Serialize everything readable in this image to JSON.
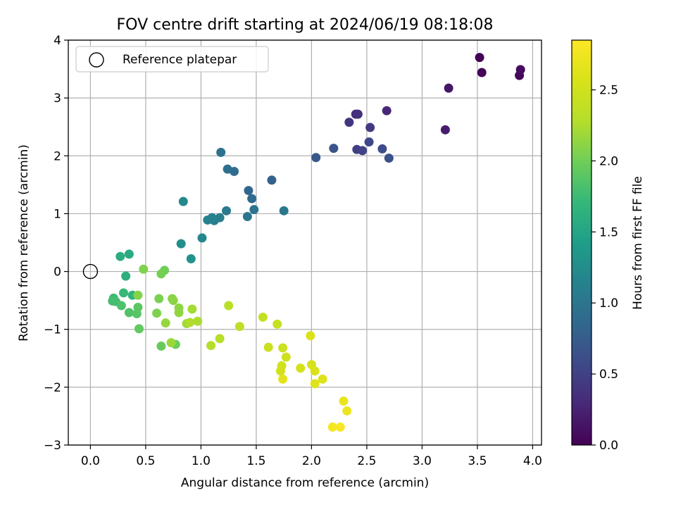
{
  "chart_data": {
    "type": "scatter",
    "title": "FOV centre drift starting at 2024/06/19 08:18:08",
    "xlabel": "Angular distance from reference (arcmin)",
    "ylabel": "Rotation from reference (arcmin)",
    "xlim": [
      -0.2,
      4.08
    ],
    "ylim": [
      -3,
      4
    ],
    "xticks": [
      "0.0",
      "0.5",
      "1.0",
      "1.5",
      "2.0",
      "2.5",
      "3.0",
      "3.5",
      "4.0"
    ],
    "xtick_values": [
      0,
      0.5,
      1,
      1.5,
      2,
      2.5,
      3,
      3.5,
      4
    ],
    "yticks": [
      "−3",
      "−2",
      "−1",
      "0",
      "1",
      "2",
      "3",
      "4"
    ],
    "ytick_values": [
      -3,
      -2,
      -1,
      0,
      1,
      2,
      3,
      4
    ],
    "grid": true,
    "legend": {
      "position": "top-left",
      "entries": [
        "Reference platepar"
      ]
    },
    "reference_point": {
      "x": 0,
      "y": 0
    },
    "colorbar": {
      "label": "Hours from first FF file",
      "colormap": "viridis",
      "range": [
        0,
        2.85
      ],
      "ticks": [
        "0.0",
        "0.5",
        "1.0",
        "1.5",
        "2.0",
        "2.5"
      ],
      "tick_values": [
        0,
        0.5,
        1,
        1.5,
        2,
        2.5
      ]
    },
    "points": [
      {
        "x": 3.52,
        "y": 3.7,
        "c": 0.0
      },
      {
        "x": 3.54,
        "y": 3.44,
        "c": 0.03
      },
      {
        "x": 3.88,
        "y": 3.39,
        "c": 0.05
      },
      {
        "x": 3.89,
        "y": 3.49,
        "c": 0.08
      },
      {
        "x": 3.24,
        "y": 3.17,
        "c": 0.15
      },
      {
        "x": 3.21,
        "y": 2.45,
        "c": 0.2
      },
      {
        "x": 2.68,
        "y": 2.78,
        "c": 0.28
      },
      {
        "x": 2.4,
        "y": 2.72,
        "c": 0.33
      },
      {
        "x": 2.42,
        "y": 2.72,
        "c": 0.36
      },
      {
        "x": 2.34,
        "y": 2.58,
        "c": 0.4
      },
      {
        "x": 2.53,
        "y": 2.49,
        "c": 0.45
      },
      {
        "x": 2.41,
        "y": 2.11,
        "c": 0.48
      },
      {
        "x": 2.46,
        "y": 2.09,
        "c": 0.52
      },
      {
        "x": 2.52,
        "y": 2.24,
        "c": 0.56
      },
      {
        "x": 2.64,
        "y": 2.12,
        "c": 0.6
      },
      {
        "x": 2.7,
        "y": 1.96,
        "c": 0.64
      },
      {
        "x": 2.2,
        "y": 2.13,
        "c": 0.67
      },
      {
        "x": 2.04,
        "y": 1.97,
        "c": 0.72
      },
      {
        "x": 1.64,
        "y": 1.58,
        "c": 0.8
      },
      {
        "x": 1.43,
        "y": 1.4,
        "c": 0.85
      },
      {
        "x": 1.46,
        "y": 1.26,
        "c": 0.88
      },
      {
        "x": 1.3,
        "y": 1.73,
        "c": 0.9
      },
      {
        "x": 1.24,
        "y": 1.77,
        "c": 0.93
      },
      {
        "x": 1.18,
        "y": 2.06,
        "c": 0.95
      },
      {
        "x": 1.48,
        "y": 1.07,
        "c": 0.98
      },
      {
        "x": 1.42,
        "y": 0.95,
        "c": 1.0
      },
      {
        "x": 1.75,
        "y": 1.05,
        "c": 1.02
      },
      {
        "x": 1.23,
        "y": 1.05,
        "c": 1.05
      },
      {
        "x": 1.17,
        "y": 0.93,
        "c": 1.08
      },
      {
        "x": 1.12,
        "y": 0.88,
        "c": 1.1
      },
      {
        "x": 1.1,
        "y": 0.93,
        "c": 1.12
      },
      {
        "x": 1.06,
        "y": 0.89,
        "c": 1.15
      },
      {
        "x": 1.01,
        "y": 0.58,
        "c": 1.18
      },
      {
        "x": 0.84,
        "y": 1.21,
        "c": 1.2
      },
      {
        "x": 0.82,
        "y": 0.48,
        "c": 1.25
      },
      {
        "x": 0.91,
        "y": 0.22,
        "c": 1.3
      },
      {
        "x": 0.35,
        "y": 0.3,
        "c": 1.55
      },
      {
        "x": 0.27,
        "y": 0.26,
        "c": 1.6
      },
      {
        "x": 0.32,
        "y": -0.08,
        "c": 1.62
      },
      {
        "x": 0.38,
        "y": -0.41,
        "c": 1.68
      },
      {
        "x": 0.3,
        "y": -0.37,
        "c": 1.72
      },
      {
        "x": 0.21,
        "y": -0.46,
        "c": 1.75
      },
      {
        "x": 0.2,
        "y": -0.51,
        "c": 1.78
      },
      {
        "x": 0.23,
        "y": -0.52,
        "c": 1.8
      },
      {
        "x": 0.28,
        "y": -0.59,
        "c": 1.83
      },
      {
        "x": 0.35,
        "y": -0.71,
        "c": 1.85
      },
      {
        "x": 0.42,
        "y": -0.73,
        "c": 1.88
      },
      {
        "x": 0.43,
        "y": -0.62,
        "c": 1.9
      },
      {
        "x": 0.44,
        "y": -0.99,
        "c": 1.93
      },
      {
        "x": 0.64,
        "y": -1.29,
        "c": 1.96
      },
      {
        "x": 0.77,
        "y": -1.26,
        "c": 1.98
      },
      {
        "x": 0.67,
        "y": 0.02,
        "c": 2.0
      },
      {
        "x": 0.64,
        "y": -0.04,
        "c": 2.02
      },
      {
        "x": 0.62,
        "y": -0.47,
        "c": 2.04
      },
      {
        "x": 0.6,
        "y": -0.72,
        "c": 2.05
      },
      {
        "x": 0.48,
        "y": 0.04,
        "c": 2.06
      },
      {
        "x": 0.43,
        "y": -0.41,
        "c": 2.08
      },
      {
        "x": 0.74,
        "y": -0.47,
        "c": 2.1
      },
      {
        "x": 0.75,
        "y": -0.5,
        "c": 2.11
      },
      {
        "x": 0.8,
        "y": -0.63,
        "c": 2.12
      },
      {
        "x": 0.8,
        "y": -0.71,
        "c": 2.13
      },
      {
        "x": 0.68,
        "y": -0.89,
        "c": 2.15
      },
      {
        "x": 0.73,
        "y": -1.23,
        "c": 2.17
      },
      {
        "x": 0.87,
        "y": -0.9,
        "c": 2.2
      },
      {
        "x": 0.92,
        "y": -0.65,
        "c": 2.22
      },
      {
        "x": 0.97,
        "y": -0.86,
        "c": 2.24
      },
      {
        "x": 0.9,
        "y": -0.88,
        "c": 2.26
      },
      {
        "x": 1.09,
        "y": -1.28,
        "c": 2.28
      },
      {
        "x": 1.17,
        "y": -1.16,
        "c": 2.3
      },
      {
        "x": 1.25,
        "y": -0.59,
        "c": 2.32
      },
      {
        "x": 1.35,
        "y": -0.95,
        "c": 2.35
      },
      {
        "x": 1.56,
        "y": -0.79,
        "c": 2.4
      },
      {
        "x": 1.69,
        "y": -0.91,
        "c": 2.42
      },
      {
        "x": 1.61,
        "y": -1.31,
        "c": 2.45
      },
      {
        "x": 1.74,
        "y": -1.32,
        "c": 2.47
      },
      {
        "x": 1.77,
        "y": -1.48,
        "c": 2.49
      },
      {
        "x": 1.73,
        "y": -1.63,
        "c": 2.5
      },
      {
        "x": 1.72,
        "y": -1.72,
        "c": 2.51
      },
      {
        "x": 1.9,
        "y": -1.67,
        "c": 2.53
      },
      {
        "x": 2.0,
        "y": -1.61,
        "c": 2.55
      },
      {
        "x": 2.03,
        "y": -1.72,
        "c": 2.57
      },
      {
        "x": 1.99,
        "y": -1.11,
        "c": 2.58
      },
      {
        "x": 2.1,
        "y": -1.86,
        "c": 2.6
      },
      {
        "x": 2.03,
        "y": -1.94,
        "c": 2.62
      },
      {
        "x": 1.74,
        "y": -1.86,
        "c": 2.65
      },
      {
        "x": 2.29,
        "y": -2.24,
        "c": 2.7
      },
      {
        "x": 2.32,
        "y": -2.41,
        "c": 2.73
      },
      {
        "x": 2.19,
        "y": -2.69,
        "c": 2.78
      },
      {
        "x": 2.26,
        "y": -2.69,
        "c": 2.82
      }
    ]
  }
}
